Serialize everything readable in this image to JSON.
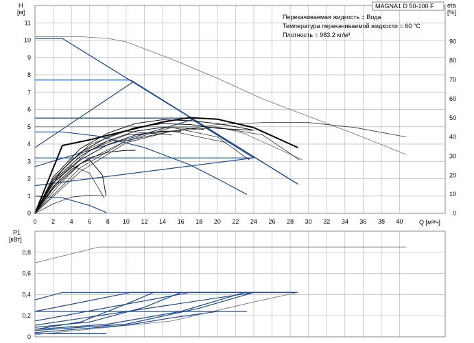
{
  "chart_data": [
    {
      "type": "line",
      "title": "MAGNA1 D 50-100 F",
      "info": [
        "Перекачиваемая жидкость = Вода",
        "Температура перекачиваемой жидкости = 60 °C",
        "Плотность = 983.2 кг/м³"
      ],
      "xlabel": "Q [м³/ч]",
      "ylabel": "H",
      "ylabel_unit": "[м]",
      "y2label": "eta",
      "y2label_unit": "[%]",
      "xlim": [
        0,
        45
      ],
      "ylim": [
        0,
        12
      ],
      "y2lim": [
        0,
        108.8
      ],
      "xticks": [
        0,
        2,
        4,
        6,
        8,
        10,
        12,
        14,
        16,
        18,
        20,
        22,
        24,
        26,
        28,
        30,
        32,
        34,
        36,
        38,
        40
      ],
      "yticks": [
        0,
        1,
        2,
        3,
        4,
        5,
        6,
        7,
        8,
        9,
        10,
        11
      ],
      "y2ticks": [
        0,
        10,
        20,
        30,
        40,
        50,
        60,
        70,
        80,
        90
      ],
      "grid": true,
      "series": [
        {
          "style": "max",
          "x": [
            0,
            3,
            28.8
          ],
          "y": [
            10.1,
            10.1,
            1.7
          ]
        },
        {
          "style": "blue",
          "x": [
            0,
            10.5,
            28.8
          ],
          "y": [
            7.7,
            7.7,
            1.7
          ]
        },
        {
          "style": "blue",
          "x": [
            0,
            17,
            24
          ],
          "y": [
            5.5,
            5.5,
            3.2
          ]
        },
        {
          "style": "blue",
          "x": [
            0,
            24
          ],
          "y": [
            3.2,
            3.2
          ]
        },
        {
          "style": "blue",
          "x": [
            0,
            10.8
          ],
          "y": [
            3.8,
            7.6
          ]
        },
        {
          "style": "blue",
          "x": [
            0,
            17.2
          ],
          "y": [
            2.7,
            5.4
          ]
        },
        {
          "style": "blue",
          "x": [
            0,
            24
          ],
          "y": [
            1.6,
            3.2
          ]
        },
        {
          "style": "blue",
          "x": [
            0,
            3,
            7,
            12,
            17,
            20,
            23.2
          ],
          "y": [
            4.7,
            4.7,
            4.45,
            3.8,
            2.8,
            2.0,
            1.1
          ]
        },
        {
          "style": "blue",
          "x": [
            0,
            3,
            6,
            7.8
          ],
          "y": [
            1.0,
            0.9,
            0.45,
            0.05
          ]
        },
        {
          "style": "gray",
          "x": [
            0,
            5,
            8,
            10,
            15,
            20,
            25,
            30,
            35,
            40.7
          ],
          "y": [
            10.2,
            10.2,
            10.1,
            9.9,
            8.9,
            7.8,
            6.6,
            5.6,
            4.6,
            3.4
          ]
        },
        {
          "style": "gray",
          "x": [
            0,
            20,
            23,
            29.3
          ],
          "y": [
            5.0,
            5.0,
            4.6,
            3.1
          ]
        },
        {
          "style": "eff",
          "x": [
            0,
            2.5,
            5,
            10,
            15,
            20,
            25,
            30,
            35,
            40.7
          ],
          "y": [
            0,
            14,
            26,
            38,
            43,
            46.5,
            47.5,
            47.5,
            45,
            40
          ]
        },
        {
          "style": "eff",
          "x": [
            0,
            5,
            10,
            15,
            20,
            25,
            29
          ],
          "y": [
            0,
            22,
            37,
            43,
            45,
            41,
            28
          ]
        },
        {
          "style": "eff",
          "x": [
            0,
            5,
            10,
            15,
            20,
            23.5
          ],
          "y": [
            0,
            24,
            38,
            45,
            40,
            28
          ]
        },
        {
          "style": "eff",
          "x": [
            0,
            3,
            6,
            10,
            15,
            21
          ],
          "y": [
            0,
            20,
            33,
            41,
            43,
            37
          ]
        },
        {
          "style": "eff",
          "x": [
            0,
            3,
            6,
            10,
            15
          ],
          "y": [
            0,
            23,
            36,
            43,
            41
          ]
        },
        {
          "style": "eff",
          "x": [
            0,
            2,
            4,
            6,
            8,
            11
          ],
          "y": [
            0,
            17,
            28,
            34,
            38,
            38
          ]
        },
        {
          "style": "eff",
          "x": [
            0,
            2,
            4,
            6,
            7.6
          ],
          "y": [
            0,
            16,
            25,
            21,
            8
          ]
        },
        {
          "style": "eff",
          "x": [
            0,
            2,
            4,
            6,
            7.6
          ],
          "y": [
            0,
            5,
            8.5,
            9.5,
            9
          ]
        },
        {
          "style": "bold",
          "x": [
            0,
            3,
            6,
            10,
            14,
            17,
            20,
            24,
            28.8
          ],
          "y": [
            0,
            35.5,
            38.5,
            43.2,
            47.8,
            50.1,
            49.3,
            44.9,
            34.5
          ]
        },
        {
          "style": "black",
          "x": [
            0,
            2,
            5,
            8,
            11,
            14,
            17,
            20,
            23,
            24
          ],
          "y": [
            0,
            19,
            34,
            42,
            47,
            49,
            48.5,
            47,
            44.5,
            43.5
          ]
        },
        {
          "style": "black",
          "x": [
            0,
            2,
            5,
            8,
            11,
            14,
            17,
            20,
            23.8
          ],
          "y": [
            0,
            18,
            32,
            40,
            45,
            47,
            46.5,
            44.5,
            43.5
          ]
        },
        {
          "style": "black",
          "x": [
            0,
            2,
            5,
            8,
            11,
            14,
            17,
            18.5
          ],
          "y": [
            0,
            17,
            30,
            38,
            43,
            45,
            44.5,
            44
          ]
        },
        {
          "style": "black",
          "x": [
            0,
            2,
            5,
            8,
            11,
            14,
            16
          ],
          "y": [
            0,
            16,
            28,
            36,
            41,
            43,
            43
          ]
        },
        {
          "style": "black",
          "x": [
            0,
            2,
            4,
            6,
            8,
            10,
            11
          ],
          "y": [
            0,
            14,
            23,
            29,
            32,
            33,
            33
          ]
        },
        {
          "style": "black",
          "x": [
            0,
            2,
            4,
            5,
            6,
            7.4,
            7.8
          ],
          "y": [
            0,
            13,
            22,
            26,
            28,
            20,
            9
          ]
        }
      ]
    },
    {
      "type": "line",
      "ylabel": "P1",
      "ylabel_unit": "[кВт]",
      "xlim": [
        0,
        45
      ],
      "ylim": [
        0,
        1.0
      ],
      "yticks": [
        0,
        0.2,
        0.4,
        0.6,
        0.8
      ],
      "ytick_labels": [
        "0",
        "0,2",
        "0,4",
        "0,6",
        "0,8"
      ],
      "grid": true,
      "series": [
        {
          "style": "blue",
          "x": [
            0,
            3,
            28.8
          ],
          "y": [
            0.35,
            0.42,
            0.42
          ]
        },
        {
          "style": "blue",
          "x": [
            0,
            10.5,
            28.8
          ],
          "y": [
            0.24,
            0.42,
            0.42
          ]
        },
        {
          "style": "blue",
          "x": [
            0,
            17,
            28.8
          ],
          "y": [
            0.15,
            0.42,
            0.42
          ]
        },
        {
          "style": "blue",
          "x": [
            0,
            24,
            28.8
          ],
          "y": [
            0.11,
            0.42,
            0.42
          ]
        },
        {
          "style": "blue",
          "x": [
            0,
            23.2
          ],
          "y": [
            0.24,
            0.24
          ]
        },
        {
          "style": "blue",
          "x": [
            0,
            7.8
          ],
          "y": [
            0.03,
            0.03
          ]
        },
        {
          "style": "blue",
          "x": [
            0,
            5,
            10,
            13
          ],
          "y": [
            0.07,
            0.14,
            0.31,
            0.42
          ]
        },
        {
          "style": "blue",
          "x": [
            0,
            6,
            12,
            16
          ],
          "y": [
            0.09,
            0.14,
            0.28,
            0.42
          ]
        },
        {
          "style": "blue",
          "x": [
            0,
            8,
            16,
            23
          ],
          "y": [
            0.07,
            0.12,
            0.24,
            0.42
          ]
        },
        {
          "style": "blue",
          "x": [
            0,
            10,
            18,
            24
          ],
          "y": [
            0.06,
            0.12,
            0.27,
            0.42
          ]
        },
        {
          "style": "blue",
          "x": [
            0,
            10,
            15,
            20
          ],
          "y": [
            0.04,
            0.11,
            0.18,
            0.24
          ]
        },
        {
          "style": "gray",
          "x": [
            0,
            7,
            40.7
          ],
          "y": [
            0.7,
            0.85,
            0.85
          ]
        },
        {
          "style": "gray",
          "x": [
            0,
            15,
            24,
            28.8
          ],
          "y": [
            0.02,
            0.15,
            0.33,
            0.42
          ]
        }
      ]
    }
  ]
}
